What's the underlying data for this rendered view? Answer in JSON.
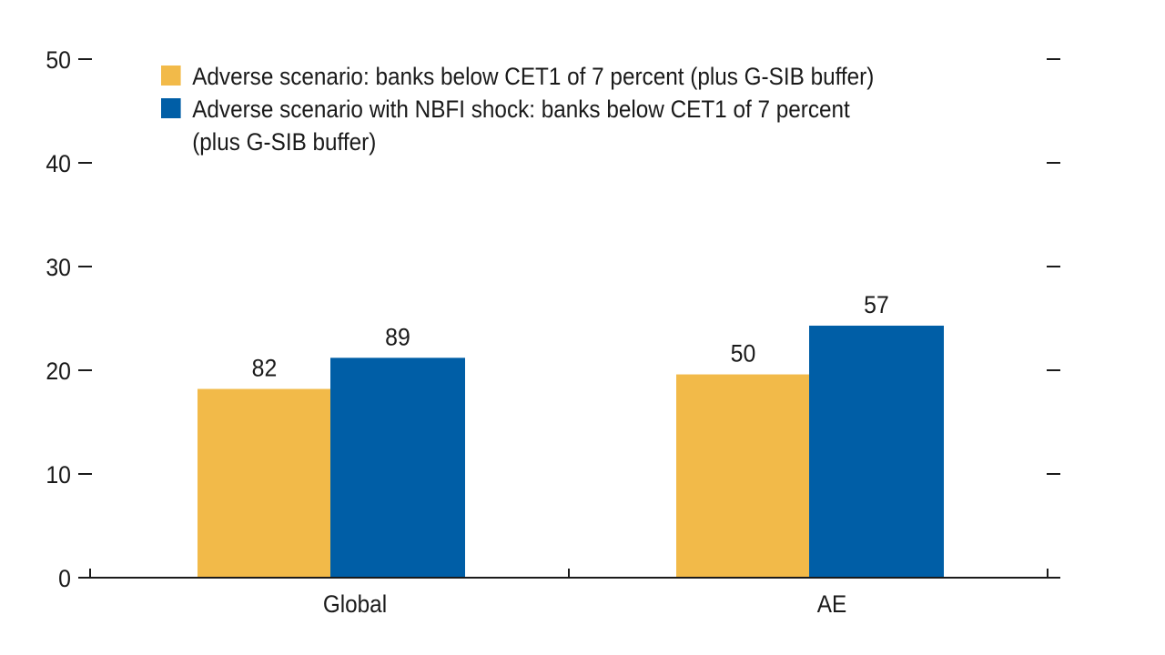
{
  "chart_data": {
    "type": "bar",
    "title": "",
    "xlabel": "",
    "ylabel": "",
    "ylim": [
      0,
      50
    ],
    "yticks": [
      0,
      10,
      20,
      30,
      40,
      50
    ],
    "ytick_labels": [
      "0",
      "10",
      "20",
      "30",
      "40",
      "50"
    ],
    "grid": false,
    "legend_position": "top-left",
    "categories": [
      "Global",
      "AE"
    ],
    "series": [
      {
        "name": "Adverse scenario: banks below CET1 of 7 percent (plus G-SIB buffer)",
        "legend_lines": [
          "Adverse scenario: banks below CET1 of 7 percent (plus G-SIB buffer)"
        ],
        "color": "#F2BA49",
        "values": [
          18.2,
          19.6
        ],
        "data_labels": [
          "82",
          "50"
        ]
      },
      {
        "name": "Adverse scenario with NBFI shock: banks below CET1 of 7 percent (plus G-SIB buffer)",
        "legend_lines": [
          "Adverse scenario with NBFI shock: banks below CET1 of 7 percent",
          "(plus G-SIB buffer)"
        ],
        "color": "#005EA6",
        "values": [
          21.2,
          24.3
        ],
        "data_labels": [
          "89",
          "57"
        ]
      }
    ]
  }
}
